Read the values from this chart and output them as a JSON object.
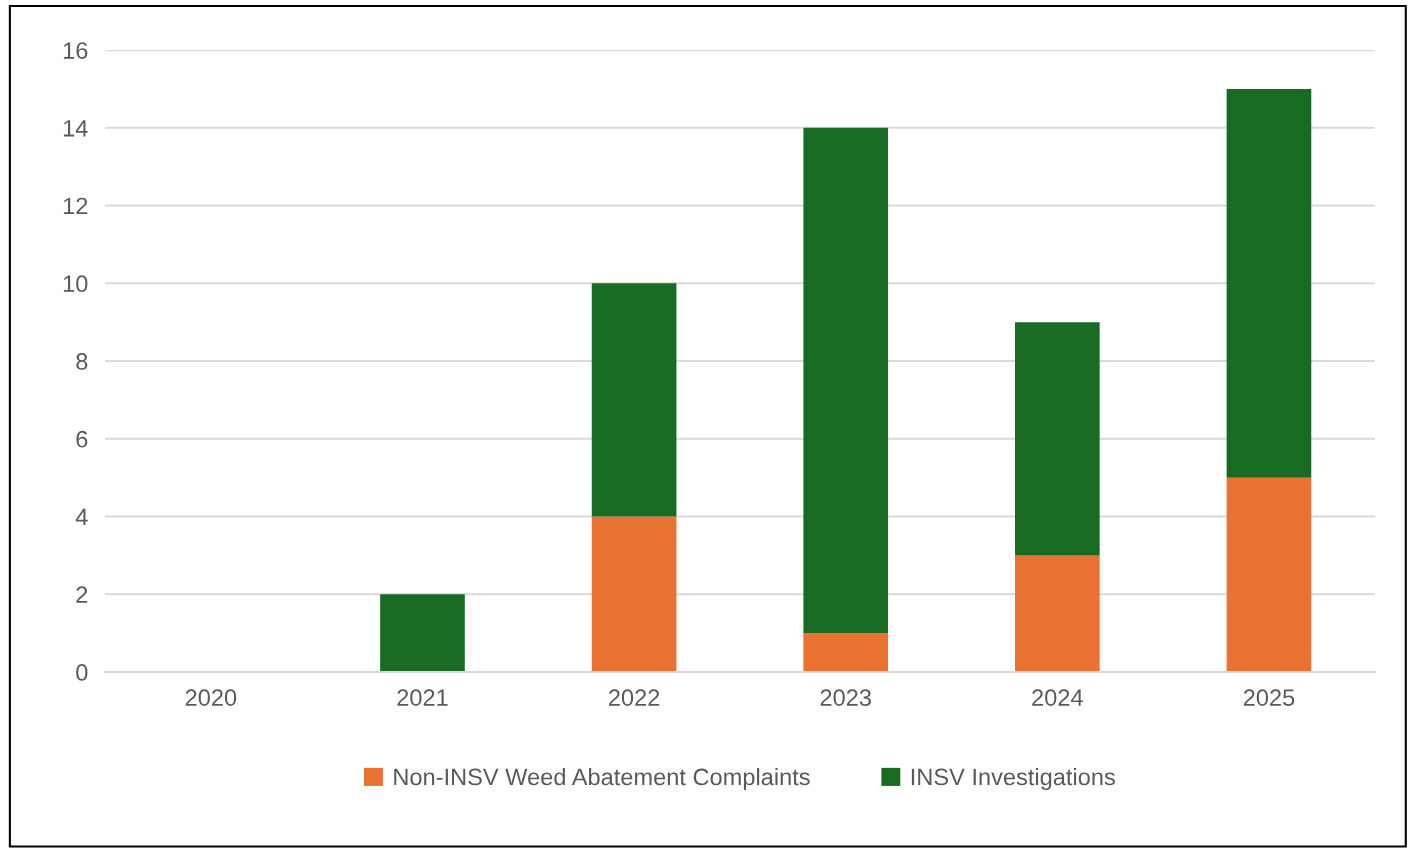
{
  "chart_data": {
    "type": "bar",
    "stacked": true,
    "categories": [
      "2020",
      "2021",
      "2022",
      "2023",
      "2024",
      "2025"
    ],
    "series": [
      {
        "name": "Non-INSV Weed Abatement Complaints",
        "color": "#e97132",
        "values": [
          0,
          0,
          4,
          1,
          3,
          5
        ]
      },
      {
        "name": "INSV Investigations",
        "color": "#196b24",
        "values": [
          0,
          2,
          6,
          13,
          6,
          10
        ]
      }
    ],
    "ylim": [
      0,
      16
    ],
    "yticks": [
      0,
      2,
      4,
      6,
      8,
      10,
      12,
      14,
      16
    ],
    "grid": "y",
    "legend": "bottom"
  }
}
